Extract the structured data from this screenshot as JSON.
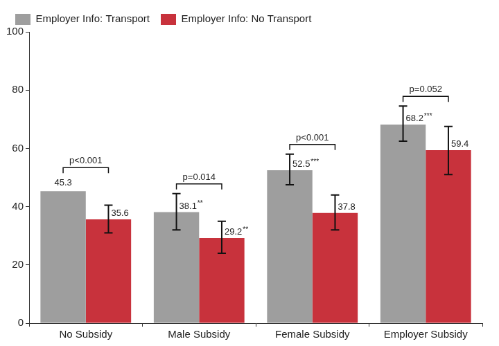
{
  "chart_data": {
    "type": "bar",
    "categories": [
      "No Subsidy",
      "Male Subsidy",
      "Female Subsidy",
      "Employer Subsidy"
    ],
    "series": [
      {
        "name": "Employer Info: Transport",
        "color": "#9e9e9e",
        "values": [
          45.3,
          38.1,
          52.5,
          68.2
        ],
        "value_labels": [
          "45.3",
          "38.1**",
          "52.5***",
          "68.2***"
        ],
        "errors": [
          null,
          [
            32.0,
            44.5
          ],
          [
            47.5,
            58.0
          ],
          [
            62.5,
            74.5
          ]
        ]
      },
      {
        "name": "Employer Info: No Transport",
        "color": "#c8323c",
        "values": [
          35.6,
          29.2,
          37.8,
          59.4
        ],
        "value_labels": [
          "35.6",
          "29.2**",
          "37.8",
          "59.4"
        ],
        "errors": [
          [
            31.0,
            40.5
          ],
          [
            24.0,
            35.0
          ],
          [
            32.0,
            44.0
          ],
          [
            51.0,
            67.5
          ]
        ]
      }
    ],
    "p_values": [
      "p<0.001",
      "p=0.014",
      "p<0.001",
      "p=0.052"
    ],
    "ylim": [
      0,
      100
    ],
    "yticks": [
      0,
      20,
      40,
      60,
      80,
      100
    ],
    "grid": false,
    "legend": "top",
    "data_labels": true
  }
}
